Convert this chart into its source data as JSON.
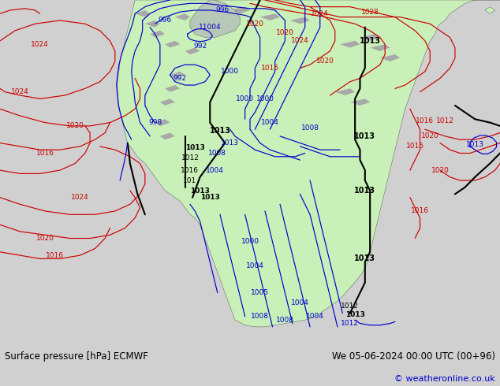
{
  "title_left": "Surface pressure [hPa] ECMWF",
  "title_right": "We 05-06-2024 00:00 UTC (00+96)",
  "copyright": "© weatheronline.co.uk",
  "bg_color": "#d0d0d0",
  "land_color": "#c8f0b8",
  "ocean_color": "#d0d0d0",
  "mountain_color": "#b0b0b0",
  "figsize": [
    6.34,
    4.9
  ],
  "dpi": 100,
  "bottom_bar_height": 0.118,
  "bottom_bar_color": "#e8e8e8",
  "title_fontsize": 8.5,
  "copyright_fontsize": 8.0,
  "blue": "#0000cc",
  "red": "#cc0000",
  "black": "#000000",
  "lw_blue": 0.85,
  "lw_red": 0.85,
  "lw_black": 1.5
}
